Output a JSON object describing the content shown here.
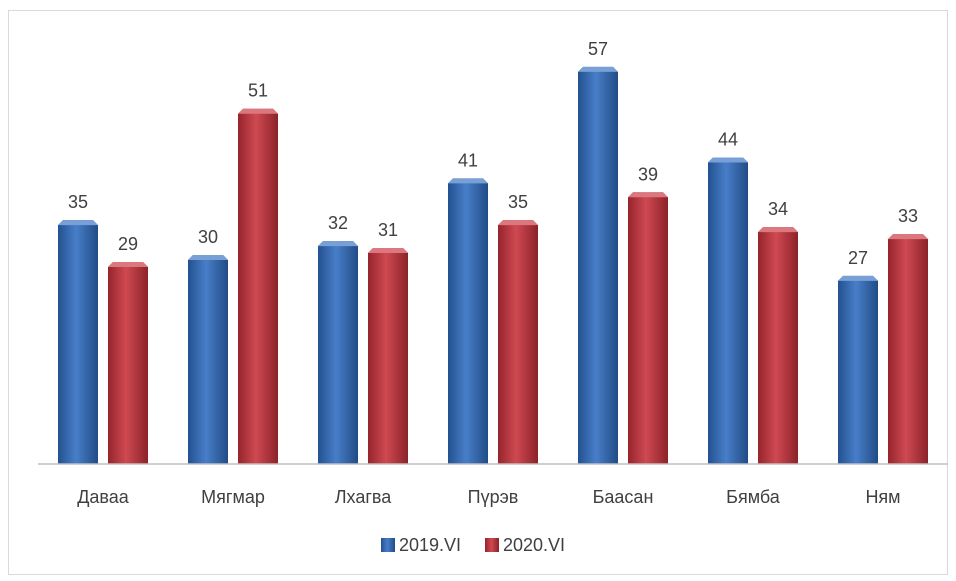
{
  "chart_data": {
    "type": "bar",
    "categories": [
      "Даваа",
      "Мягмар",
      "Лхагва",
      "Пүрэв",
      "Баасан",
      "Бямба",
      "Ням"
    ],
    "series": [
      {
        "name": "2019.VI",
        "values": [
          35,
          30,
          32,
          41,
          57,
          44,
          27
        ],
        "color": "#2f6cc0"
      },
      {
        "name": "2020.VI",
        "values": [
          29,
          51,
          31,
          35,
          39,
          34,
          33
        ],
        "color": "#c8303a"
      }
    ],
    "title": "",
    "xlabel": "",
    "ylabel": "",
    "ylim": [
      0,
      60
    ],
    "grid": false,
    "data_labels": true,
    "legend_position": "bottom"
  }
}
